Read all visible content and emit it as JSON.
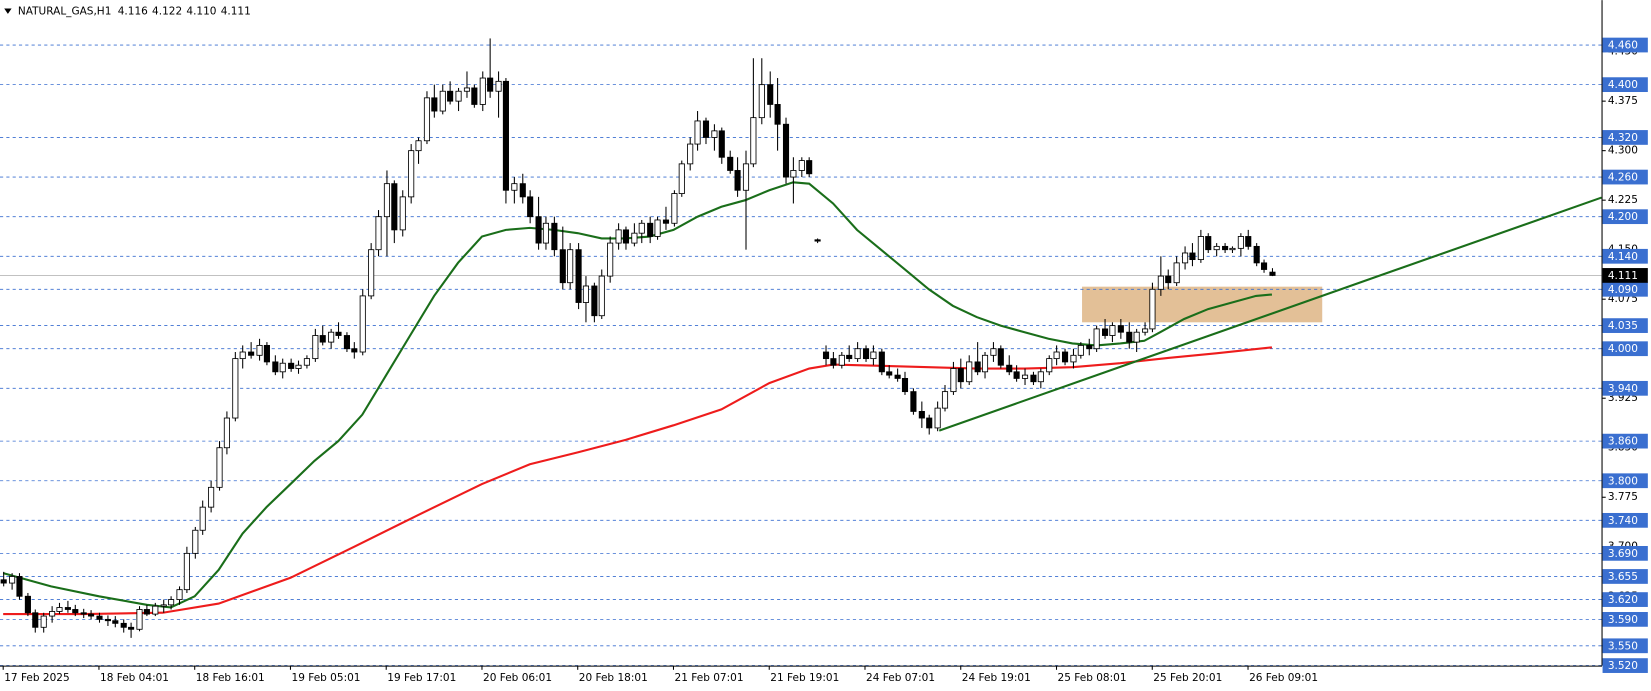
{
  "chart_data": {
    "type": "candlestick",
    "title": "NATURAL_GAS,H1",
    "header_values": [
      "4.116",
      "4.122",
      "4.110",
      "4.111"
    ],
    "xlim": [
      -0.4,
      200.3
    ],
    "ylim": [
      3.52,
      4.528
    ],
    "yticks": [
      {
        "value": 3.55,
        "label": "3.550"
      },
      {
        "value": 3.625,
        "label": "3.625"
      },
      {
        "value": 3.7,
        "label": "3.700"
      },
      {
        "value": 3.775,
        "label": "3.775"
      },
      {
        "value": 3.85,
        "label": "3.850"
      },
      {
        "value": 3.925,
        "label": "3.925"
      },
      {
        "value": 4.0,
        "label": "4.000"
      },
      {
        "value": 4.075,
        "label": "4.075"
      },
      {
        "value": 4.15,
        "label": "4.150"
      },
      {
        "value": 4.225,
        "label": "4.225"
      },
      {
        "value": 4.3,
        "label": "4.300"
      },
      {
        "value": 4.375,
        "label": "4.375"
      },
      {
        "value": 4.45,
        "label": "4.450"
      }
    ],
    "levels": [
      {
        "value": 4.46,
        "label": "4.460"
      },
      {
        "value": 4.4,
        "label": "4.400"
      },
      {
        "value": 4.32,
        "label": "4.320"
      },
      {
        "value": 4.26,
        "label": "4.260"
      },
      {
        "value": 4.2,
        "label": "4.200"
      },
      {
        "value": 4.14,
        "label": "4.140"
      },
      {
        "value": 4.09,
        "label": "4.090"
      },
      {
        "value": 4.035,
        "label": "4.035"
      },
      {
        "value": 4.0,
        "label": "4.000"
      },
      {
        "value": 3.94,
        "label": "3.940"
      },
      {
        "value": 3.86,
        "label": "3.860"
      },
      {
        "value": 3.8,
        "label": "3.800"
      },
      {
        "value": 3.74,
        "label": "3.740"
      },
      {
        "value": 3.69,
        "label": "3.690"
      },
      {
        "value": 3.655,
        "label": "3.655"
      },
      {
        "value": 3.62,
        "label": "3.620"
      },
      {
        "value": 3.59,
        "label": "3.590"
      },
      {
        "value": 3.55,
        "label": "3.550"
      },
      {
        "value": 3.52,
        "label": "3.520"
      }
    ],
    "level_color": "#3a6fd0",
    "current_price": {
      "value": 4.111,
      "label": "4.111"
    },
    "xticks": [
      {
        "value": 0,
        "label": "17 Feb 2025"
      },
      {
        "value": 12,
        "label": "18 Feb 04:01"
      },
      {
        "value": 24,
        "label": "18 Feb 16:01"
      },
      {
        "value": 36,
        "label": "19 Feb 05:01"
      },
      {
        "value": 48,
        "label": "19 Feb 17:01"
      },
      {
        "value": 60,
        "label": "20 Feb 06:01"
      },
      {
        "value": 72,
        "label": "20 Feb 18:01"
      },
      {
        "value": 84,
        "label": "21 Feb 07:01"
      },
      {
        "value": 96,
        "label": "21 Feb 19:01"
      },
      {
        "value": 108,
        "label": "24 Feb 07:01"
      },
      {
        "value": 120,
        "label": "24 Feb 19:01"
      },
      {
        "value": 132,
        "label": "25 Feb 08:01"
      },
      {
        "value": 144,
        "label": "25 Feb 20:01"
      },
      {
        "value": 156,
        "label": "26 Feb 09:01"
      }
    ],
    "ohlc": [
      [
        3.65,
        3.662,
        3.64,
        3.645
      ],
      [
        3.645,
        3.66,
        3.635,
        3.655
      ],
      [
        3.655,
        3.66,
        3.62,
        3.625
      ],
      [
        3.625,
        3.63,
        3.595,
        3.6
      ],
      [
        3.6,
        3.605,
        3.57,
        3.578
      ],
      [
        3.578,
        3.6,
        3.57,
        3.595
      ],
      [
        3.595,
        3.61,
        3.585,
        3.602
      ],
      [
        3.602,
        3.615,
        3.598,
        3.608
      ],
      [
        3.608,
        3.618,
        3.6,
        3.605
      ],
      [
        3.605,
        3.612,
        3.595,
        3.6
      ],
      [
        3.6,
        3.606,
        3.592,
        3.598
      ],
      [
        3.598,
        3.604,
        3.59,
        3.595
      ],
      [
        3.595,
        3.6,
        3.585,
        3.59
      ],
      [
        3.59,
        3.596,
        3.58,
        3.588
      ],
      [
        3.588,
        3.595,
        3.578,
        3.584
      ],
      [
        3.584,
        3.59,
        3.57,
        3.578
      ],
      [
        3.578,
        3.585,
        3.562,
        3.575
      ],
      [
        3.575,
        3.61,
        3.572,
        3.605
      ],
      [
        3.605,
        3.612,
        3.595,
        3.598
      ],
      [
        3.598,
        3.615,
        3.595,
        3.61
      ],
      [
        3.61,
        3.62,
        3.6,
        3.612
      ],
      [
        3.612,
        3.625,
        3.605,
        3.62
      ],
      [
        3.62,
        3.64,
        3.612,
        3.635
      ],
      [
        3.635,
        3.7,
        3.63,
        3.69
      ],
      [
        3.69,
        3.73,
        3.682,
        3.725
      ],
      [
        3.725,
        3.77,
        3.718,
        3.76
      ],
      [
        3.76,
        3.8,
        3.752,
        3.79
      ],
      [
        3.79,
        3.86,
        3.785,
        3.85
      ],
      [
        3.85,
        3.905,
        3.84,
        3.895
      ],
      [
        3.895,
        3.995,
        3.89,
        3.985
      ],
      [
        3.985,
        4.005,
        3.97,
        3.995
      ],
      [
        3.995,
        4.01,
        3.985,
        3.99
      ],
      [
        3.99,
        4.015,
        3.982,
        4.005
      ],
      [
        4.005,
        4.01,
        3.975,
        3.98
      ],
      [
        3.98,
        3.99,
        3.96,
        3.965
      ],
      [
        3.965,
        3.985,
        3.955,
        3.978
      ],
      [
        3.978,
        3.985,
        3.965,
        3.97
      ],
      [
        3.97,
        3.982,
        3.962,
        3.975
      ],
      [
        3.975,
        3.99,
        3.97,
        3.985
      ],
      [
        3.985,
        4.03,
        3.98,
        4.02
      ],
      [
        4.02,
        4.035,
        4.005,
        4.01
      ],
      [
        4.01,
        4.03,
        4.0,
        4.025
      ],
      [
        4.025,
        4.04,
        4.015,
        4.02
      ],
      [
        4.02,
        4.025,
        3.995,
        4.0
      ],
      [
        4.0,
        4.01,
        3.985,
        3.995
      ],
      [
        3.995,
        4.09,
        3.99,
        4.08
      ],
      [
        4.08,
        4.16,
        4.075,
        4.15
      ],
      [
        4.15,
        4.21,
        4.14,
        4.2
      ],
      [
        4.2,
        4.27,
        4.14,
        4.25
      ],
      [
        4.25,
        4.255,
        4.16,
        4.18
      ],
      [
        4.18,
        4.24,
        4.17,
        4.23
      ],
      [
        4.23,
        4.31,
        4.22,
        4.3
      ],
      [
        4.3,
        4.32,
        4.28,
        4.315
      ],
      [
        4.315,
        4.39,
        4.31,
        4.38
      ],
      [
        4.38,
        4.4,
        4.35,
        4.36
      ],
      [
        4.36,
        4.4,
        4.355,
        4.39
      ],
      [
        4.39,
        4.405,
        4.37,
        4.375
      ],
      [
        4.375,
        4.395,
        4.36,
        4.39
      ],
      [
        4.39,
        4.42,
        4.38,
        4.395
      ],
      [
        4.395,
        4.4,
        4.365,
        4.37
      ],
      [
        4.37,
        4.42,
        4.36,
        4.41
      ],
      [
        4.41,
        4.47,
        4.38,
        4.39
      ],
      [
        4.39,
        4.42,
        4.35,
        4.405
      ],
      [
        4.405,
        4.41,
        4.22,
        4.24
      ],
      [
        4.24,
        4.26,
        4.22,
        4.25
      ],
      [
        4.25,
        4.265,
        4.22,
        4.23
      ],
      [
        4.23,
        4.24,
        4.19,
        4.2
      ],
      [
        4.2,
        4.23,
        4.15,
        4.16
      ],
      [
        4.16,
        4.2,
        4.15,
        4.19
      ],
      [
        4.19,
        4.2,
        4.14,
        4.15
      ],
      [
        4.15,
        4.185,
        4.09,
        4.1
      ],
      [
        4.1,
        4.16,
        4.09,
        4.15
      ],
      [
        4.15,
        4.16,
        4.06,
        4.07
      ],
      [
        4.07,
        4.11,
        4.04,
        4.095
      ],
      [
        4.095,
        4.1,
        4.04,
        4.05
      ],
      [
        4.05,
        4.12,
        4.045,
        4.11
      ],
      [
        4.11,
        4.17,
        4.1,
        4.16
      ],
      [
        4.16,
        4.19,
        4.15,
        4.18
      ],
      [
        4.18,
        4.185,
        4.15,
        4.16
      ],
      [
        4.16,
        4.19,
        4.155,
        4.175
      ],
      [
        4.175,
        4.195,
        4.16,
        4.19
      ],
      [
        4.19,
        4.2,
        4.16,
        4.17
      ],
      [
        4.17,
        4.2,
        4.165,
        4.195
      ],
      [
        4.195,
        4.215,
        4.18,
        4.19
      ],
      [
        4.19,
        4.24,
        4.185,
        4.235
      ],
      [
        4.235,
        4.285,
        4.23,
        4.28
      ],
      [
        4.28,
        4.32,
        4.27,
        4.31
      ],
      [
        4.31,
        4.36,
        4.3,
        4.345
      ],
      [
        4.345,
        4.35,
        4.31,
        4.32
      ],
      [
        4.32,
        4.34,
        4.3,
        4.33
      ],
      [
        4.33,
        4.335,
        4.28,
        4.29
      ],
      [
        4.29,
        4.3,
        4.265,
        4.27
      ],
      [
        4.27,
        4.29,
        4.23,
        4.24
      ],
      [
        4.24,
        4.3,
        4.15,
        4.28
      ],
      [
        4.28,
        4.44,
        4.275,
        4.35
      ],
      [
        4.35,
        4.44,
        4.34,
        4.4
      ],
      [
        4.4,
        4.42,
        4.35,
        4.37
      ],
      [
        4.37,
        4.41,
        4.3,
        4.34
      ],
      [
        4.34,
        4.35,
        4.25,
        4.26
      ],
      [
        4.26,
        4.29,
        4.22,
        4.27
      ],
      [
        4.27,
        4.29,
        4.26,
        4.285
      ],
      [
        4.285,
        4.29,
        4.26,
        4.265
      ],
      [
        4.165,
        4.167,
        4.16,
        4.163
      ],
      [
        3.995,
        4.005,
        3.975,
        3.985
      ],
      [
        3.985,
        3.995,
        3.97,
        3.975
      ],
      [
        3.975,
        3.995,
        3.97,
        3.99
      ],
      [
        3.99,
        4.005,
        3.98,
        3.985
      ],
      [
        3.985,
        4.01,
        3.98,
        4.0
      ],
      [
        4.0,
        4.005,
        3.98,
        3.985
      ],
      [
        3.985,
        4.005,
        3.975,
        3.995
      ],
      [
        3.995,
        4.0,
        3.96,
        3.965
      ],
      [
        3.965,
        3.975,
        3.955,
        3.96
      ],
      [
        3.96,
        3.97,
        3.95,
        3.955
      ],
      [
        3.955,
        3.965,
        3.93,
        3.935
      ],
      [
        3.935,
        3.94,
        3.9,
        3.905
      ],
      [
        3.905,
        3.92,
        3.88,
        3.895
      ],
      [
        3.895,
        3.9,
        3.87,
        3.88
      ],
      [
        3.88,
        3.92,
        3.875,
        3.91
      ],
      [
        3.91,
        3.945,
        3.905,
        3.935
      ],
      [
        3.935,
        3.98,
        3.93,
        3.97
      ],
      [
        3.97,
        3.985,
        3.94,
        3.95
      ],
      [
        3.95,
        3.99,
        3.945,
        3.98
      ],
      [
        3.98,
        4.01,
        3.96,
        3.965
      ],
      [
        3.965,
        3.995,
        3.955,
        3.99
      ],
      [
        3.99,
        4.01,
        3.98,
        4.0
      ],
      [
        4.0,
        4.005,
        3.97,
        3.975
      ],
      [
        3.975,
        3.99,
        3.96,
        3.965
      ],
      [
        3.965,
        3.975,
        3.95,
        3.955
      ],
      [
        3.955,
        3.97,
        3.945,
        3.96
      ],
      [
        3.96,
        3.965,
        3.945,
        3.95
      ],
      [
        3.95,
        3.97,
        3.94,
        3.965
      ],
      [
        3.965,
        3.99,
        3.96,
        3.985
      ],
      [
        3.985,
        4.005,
        3.975,
        3.995
      ],
      [
        3.995,
        4.0,
        3.975,
        3.98
      ],
      [
        3.98,
        4.0,
        3.97,
        3.99
      ],
      [
        3.99,
        4.01,
        3.985,
        4.005
      ],
      [
        4.005,
        4.015,
        3.99,
        4.0
      ],
      [
        4.0,
        4.035,
        3.995,
        4.03
      ],
      [
        4.03,
        4.045,
        4.015,
        4.02
      ],
      [
        4.02,
        4.04,
        4.01,
        4.035
      ],
      [
        4.035,
        4.045,
        4.015,
        4.025
      ],
      [
        4.025,
        4.04,
        4.0,
        4.01
      ],
      [
        4.01,
        4.03,
        3.995,
        4.025
      ],
      [
        4.025,
        4.04,
        4.02,
        4.03
      ],
      [
        4.03,
        4.1,
        4.025,
        4.09
      ],
      [
        4.09,
        4.14,
        4.08,
        4.11
      ],
      [
        4.11,
        4.12,
        4.09,
        4.1
      ],
      [
        4.1,
        4.14,
        4.095,
        4.13
      ],
      [
        4.13,
        4.155,
        4.12,
        4.145
      ],
      [
        4.145,
        4.16,
        4.125,
        4.135
      ],
      [
        4.135,
        4.18,
        4.13,
        4.17
      ],
      [
        4.17,
        4.175,
        4.145,
        4.15
      ],
      [
        4.15,
        4.16,
        4.14,
        4.155
      ],
      [
        4.155,
        4.16,
        4.145,
        4.15
      ],
      [
        4.15,
        4.155,
        4.145,
        4.152
      ],
      [
        4.152,
        4.175,
        4.14,
        4.17
      ],
      [
        4.17,
        4.18,
        4.15,
        4.155
      ],
      [
        4.155,
        4.16,
        4.125,
        4.13
      ],
      [
        4.13,
        4.135,
        4.115,
        4.12
      ],
      [
        4.116,
        4.122,
        4.11,
        4.111
      ]
    ],
    "lines": [
      {
        "color": "#1a6e1a",
        "x": [
          0,
          6,
          12,
          18,
          21,
          24,
          27,
          30,
          33,
          36,
          39,
          42,
          45,
          48,
          51,
          54,
          57,
          60,
          63,
          66,
          69,
          72,
          75,
          78,
          81,
          84,
          87,
          90,
          93,
          96,
          99,
          101,
          104,
          107,
          110,
          113,
          116,
          119,
          122,
          125,
          128,
          131,
          134,
          137,
          140,
          143,
          145,
          148,
          151,
          154,
          157,
          159
        ],
        "values": [
          3.66,
          3.64,
          3.625,
          3.612,
          3.608,
          3.625,
          3.665,
          3.72,
          3.76,
          3.795,
          3.83,
          3.86,
          3.9,
          3.96,
          4.02,
          4.08,
          4.13,
          4.17,
          4.18,
          4.183,
          4.18,
          4.175,
          4.167,
          4.167,
          4.17,
          4.18,
          4.2,
          4.215,
          4.225,
          4.24,
          4.252,
          4.25,
          4.22,
          4.18,
          4.15,
          4.12,
          4.09,
          4.065,
          4.048,
          4.035,
          4.025,
          4.015,
          4.008,
          4.005,
          4.008,
          4.012,
          4.025,
          4.045,
          4.06,
          4.07,
          4.08,
          4.082
        ]
      },
      {
        "color": "#ee1c1c",
        "x": [
          0,
          10,
          20,
          27,
          36,
          44,
          52,
          60,
          66,
          72,
          78,
          84,
          90,
          96,
          101,
          104,
          110,
          116,
          122,
          128,
          134,
          140,
          146,
          152,
          159
        ],
        "values": [
          3.598,
          3.598,
          3.6,
          3.614,
          3.653,
          3.7,
          3.748,
          3.795,
          3.825,
          3.843,
          3.862,
          3.884,
          3.908,
          3.948,
          3.97,
          3.976,
          3.974,
          3.972,
          3.97,
          3.97,
          3.972,
          3.978,
          3.986,
          3.993,
          4.002
        ]
      }
    ],
    "trendline": {
      "color": "#1a6e1a",
      "x": [
        117.3,
        200.3
      ],
      "values": [
        3.876,
        4.229
      ]
    },
    "zone": {
      "color": "#deb585",
      "x": [
        135.2,
        165.3
      ],
      "values": [
        4.04,
        4.094
      ]
    }
  }
}
